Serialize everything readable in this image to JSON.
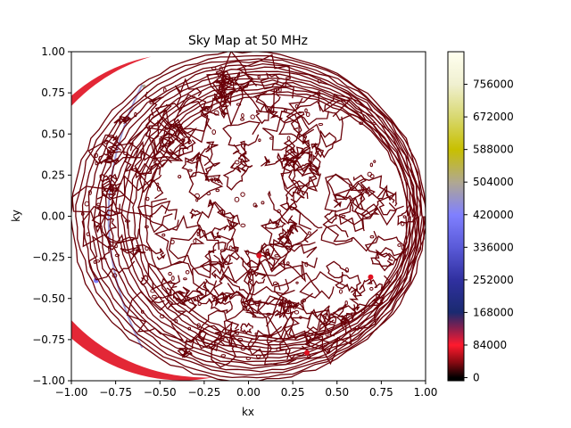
{
  "chart_data": {
    "type": "contour",
    "title": "Sky Map at 50 MHz",
    "xlabel": "kx",
    "ylabel": "ky",
    "xlim": [
      -1.0,
      1.0
    ],
    "ylim": [
      -1.0,
      1.0
    ],
    "x_ticks": [
      "−1.00",
      "−0.75",
      "−0.50",
      "−0.25",
      "0.00",
      "0.25",
      "0.50",
      "0.75",
      "1.00"
    ],
    "y_ticks": [
      "1.00",
      "0.75",
      "0.50",
      "0.25",
      "0.00",
      "−0.25",
      "−0.50",
      "−0.75",
      "−1.00"
    ],
    "x_tick_values": [
      -1.0,
      -0.75,
      -0.5,
      -0.25,
      0.0,
      0.25,
      0.5,
      0.75,
      1.0
    ],
    "y_tick_values": [
      1.0,
      0.75,
      0.5,
      0.25,
      0.0,
      -0.25,
      -0.5,
      -0.75,
      -1.0
    ],
    "colorbar": {
      "ticks": [
        "756000",
        "672000",
        "588000",
        "504000",
        "420000",
        "336000",
        "252000",
        "168000",
        "84000",
        "0"
      ],
      "tick_values": [
        756000,
        672000,
        588000,
        504000,
        420000,
        336000,
        252000,
        168000,
        84000,
        0
      ],
      "range": [
        -8000,
        840000
      ],
      "colormap": "gist_stern-like",
      "stops": [
        {
          "value": 0,
          "color": "#000000"
        },
        {
          "value": 40000,
          "color": "#8a0a12"
        },
        {
          "value": 84000,
          "color": "#ff1a2e"
        },
        {
          "value": 130000,
          "color": "#802050"
        },
        {
          "value": 168000,
          "color": "#1a2a70"
        },
        {
          "value": 252000,
          "color": "#3030a0"
        },
        {
          "value": 336000,
          "color": "#5a5ad8"
        },
        {
          "value": 420000,
          "color": "#8080ff"
        },
        {
          "value": 504000,
          "color": "#b0a890"
        },
        {
          "value": 588000,
          "color": "#c8c000"
        },
        {
          "value": 672000,
          "color": "#d8d870"
        },
        {
          "value": 756000,
          "color": "#f0f0d0"
        },
        {
          "value": 840000,
          "color": "#fffff0"
        }
      ]
    },
    "line_color": "#6a0008",
    "limb_color": "#e01020",
    "grid": false
  }
}
